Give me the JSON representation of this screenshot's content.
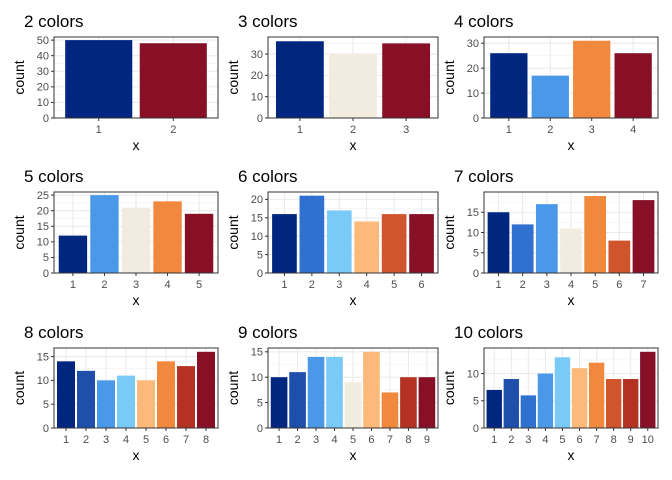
{
  "chart_data": [
    {
      "type": "bar",
      "title": "2 colors",
      "xlabel": "x",
      "ylabel": "count",
      "categories": [
        "1",
        "2"
      ],
      "values": [
        50,
        48
      ],
      "colors": [
        "#00267F",
        "#870F26"
      ],
      "ylim": [
        0,
        52
      ],
      "yticks": [
        0,
        10,
        20,
        30,
        40,
        50
      ]
    },
    {
      "type": "bar",
      "title": "3 colors",
      "xlabel": "x",
      "ylabel": "count",
      "categories": [
        "1",
        "2",
        "3"
      ],
      "values": [
        36,
        30,
        35
      ],
      "colors": [
        "#00267F",
        "#F2EBE0",
        "#870F26"
      ],
      "ylim": [
        0,
        38
      ],
      "yticks": [
        0,
        10,
        20,
        30
      ]
    },
    {
      "type": "bar",
      "title": "4 colors",
      "xlabel": "x",
      "ylabel": "count",
      "categories": [
        "1",
        "2",
        "3",
        "4"
      ],
      "values": [
        26,
        17,
        31,
        26
      ],
      "colors": [
        "#00267F",
        "#4A99E8",
        "#F0883D",
        "#870F26"
      ],
      "ylim": [
        0,
        32.5
      ],
      "yticks": [
        0,
        10,
        20,
        30
      ]
    },
    {
      "type": "bar",
      "title": "5 colors",
      "xlabel": "x",
      "ylabel": "count",
      "categories": [
        "1",
        "2",
        "3",
        "4",
        "5"
      ],
      "values": [
        12,
        25,
        21,
        23,
        19
      ],
      "colors": [
        "#00267F",
        "#4A99E8",
        "#F2EBE0",
        "#F0883D",
        "#870F26"
      ],
      "ylim": [
        0,
        26
      ],
      "yticks": [
        0,
        5,
        10,
        15,
        20,
        25
      ]
    },
    {
      "type": "bar",
      "title": "6 colors",
      "xlabel": "x",
      "ylabel": "count",
      "categories": [
        "1",
        "2",
        "3",
        "4",
        "5",
        "6"
      ],
      "values": [
        16,
        21,
        17,
        14,
        16,
        16
      ],
      "colors": [
        "#00267F",
        "#3070CF",
        "#7ACAF8",
        "#FDB97A",
        "#D0542C",
        "#870F26"
      ],
      "ylim": [
        0,
        22
      ],
      "yticks": [
        0,
        5,
        10,
        15,
        20
      ]
    },
    {
      "type": "bar",
      "title": "7 colors",
      "xlabel": "x",
      "ylabel": "count",
      "categories": [
        "1",
        "2",
        "3",
        "4",
        "5",
        "6",
        "7"
      ],
      "values": [
        15,
        12,
        17,
        11,
        19,
        8,
        18
      ],
      "colors": [
        "#00267F",
        "#3070CF",
        "#4A99E8",
        "#F2EBE0",
        "#F0883D",
        "#D0542C",
        "#870F26"
      ],
      "ylim": [
        0,
        20
      ],
      "yticks": [
        0,
        5,
        10,
        15
      ]
    },
    {
      "type": "bar",
      "title": "8 colors",
      "xlabel": "x",
      "ylabel": "count",
      "categories": [
        "1",
        "2",
        "3",
        "4",
        "5",
        "6",
        "7",
        "8"
      ],
      "values": [
        14,
        12,
        10,
        11,
        10,
        14,
        13,
        16
      ],
      "colors": [
        "#00267F",
        "#1E50AB",
        "#4A99E8",
        "#7ACAF8",
        "#FDB97A",
        "#F0883D",
        "#B43222",
        "#870F26"
      ],
      "ylim": [
        0,
        16.8
      ],
      "yticks": [
        0,
        5,
        10,
        15
      ]
    },
    {
      "type": "bar",
      "title": "9 colors",
      "xlabel": "x",
      "ylabel": "count",
      "categories": [
        "1",
        "2",
        "3",
        "4",
        "5",
        "6",
        "7",
        "8",
        "9"
      ],
      "values": [
        10,
        11,
        14,
        14,
        9,
        15,
        7,
        10,
        10
      ],
      "colors": [
        "#00267F",
        "#1E50AB",
        "#4A99E8",
        "#7ACAF8",
        "#F2EBE0",
        "#FDB97A",
        "#F0883D",
        "#B43222",
        "#870F26"
      ],
      "ylim": [
        0,
        15.75
      ],
      "yticks": [
        0,
        5,
        10,
        15
      ]
    },
    {
      "type": "bar",
      "title": "10 colors",
      "xlabel": "x",
      "ylabel": "count",
      "categories": [
        "1",
        "2",
        "3",
        "4",
        "5",
        "6",
        "7",
        "8",
        "9",
        "10"
      ],
      "values": [
        7,
        9,
        6,
        10,
        13,
        11,
        12,
        9,
        9,
        14
      ],
      "colors": [
        "#00267F",
        "#1E50AB",
        "#3070CF",
        "#4A99E8",
        "#7ACAF8",
        "#FDB97A",
        "#F0883D",
        "#D0542C",
        "#B43222",
        "#870F26"
      ],
      "ylim": [
        0,
        14.7
      ],
      "yticks": [
        0,
        5,
        10
      ]
    }
  ]
}
